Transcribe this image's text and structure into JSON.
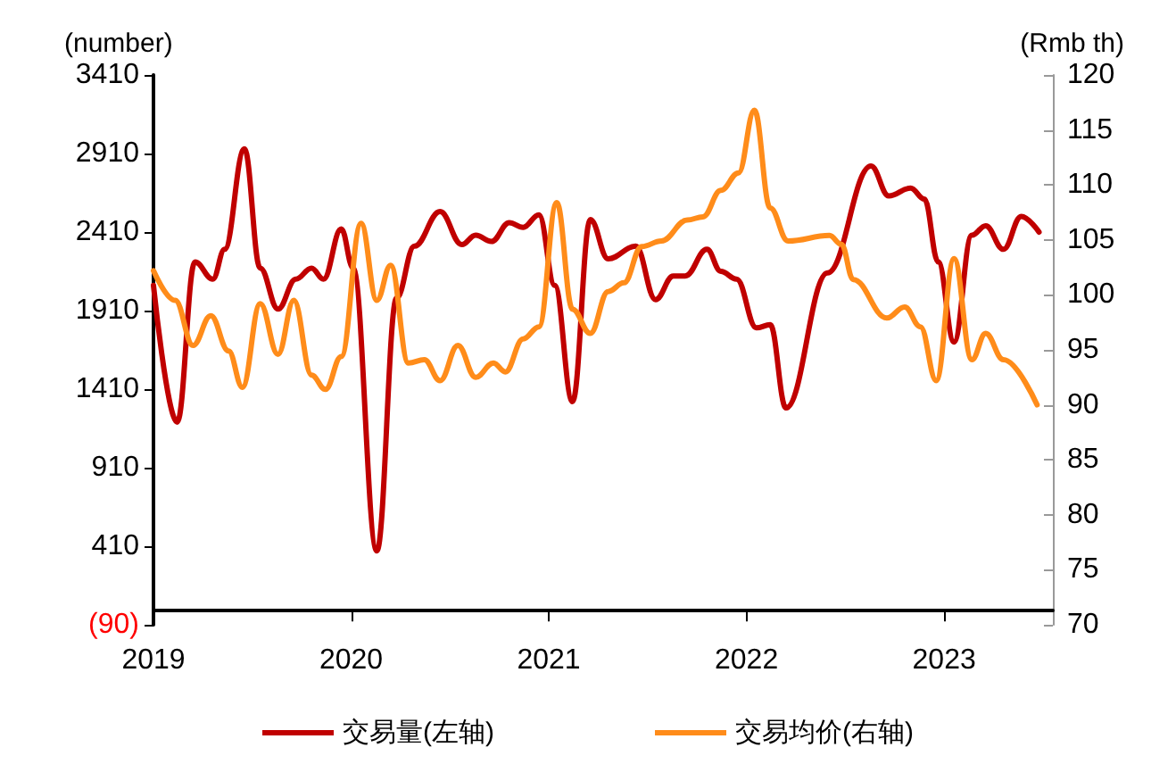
{
  "chart_data": {
    "type": "line",
    "ylabel": "(number)",
    "y2label": "(Rmb th)",
    "xlim": [
      2019,
      2023.55
    ],
    "xticks": [
      2019,
      2020,
      2021,
      2022,
      2023
    ],
    "ylim": [
      -90,
      3410
    ],
    "yticks": [
      {
        "value": -90,
        "label": "(90)"
      },
      410,
      910,
      1410,
      1910,
      2410,
      2910,
      3410
    ],
    "y2lim": [
      70,
      120
    ],
    "y2ticks": [
      70,
      75,
      80,
      85,
      90,
      95,
      100,
      105,
      110,
      115,
      120
    ],
    "grid": false,
    "legend": "bottom",
    "marker": "none",
    "line_style": "solid",
    "series": [
      {
        "name": "交易量(左轴)",
        "color": "#c00000",
        "x": [
          2019.0,
          2019.12,
          2019.21,
          2019.3,
          2019.36,
          2019.46,
          2019.54,
          2019.63,
          2019.72,
          2019.8,
          2019.86,
          2019.95,
          2020.01,
          2020.13,
          2020.23,
          2020.32,
          2020.45,
          2020.56,
          2020.63,
          2020.71,
          2020.8,
          2020.87,
          2020.95,
          2021.03,
          2021.12,
          2021.21,
          2021.3,
          2021.44,
          2021.54,
          2021.63,
          2021.69,
          2021.8,
          2021.87,
          2021.95,
          2022.05,
          2022.12,
          2022.2,
          2022.41,
          2022.63,
          2022.72,
          2022.83,
          2022.9,
          2022.97,
          2023.05,
          2023.14,
          2023.21,
          2023.3,
          2023.39,
          2023.48
        ],
        "values": [
          2070,
          1200,
          2220,
          2110,
          2300,
          2940,
          2180,
          1920,
          2110,
          2180,
          2110,
          2430,
          2180,
          380,
          1990,
          2320,
          2540,
          2330,
          2390,
          2350,
          2470,
          2440,
          2520,
          2070,
          1330,
          2490,
          2240,
          2320,
          1980,
          2130,
          2130,
          2300,
          2160,
          2110,
          1800,
          1820,
          1290,
          2150,
          2830,
          2640,
          2690,
          2620,
          2220,
          1710,
          2390,
          2450,
          2300,
          2510,
          2410
        ]
      },
      {
        "name": "交易均价(右轴)",
        "color": "#ff8c1a",
        "axis": "y2",
        "x": [
          2019.0,
          2019.11,
          2019.2,
          2019.29,
          2019.38,
          2019.45,
          2019.54,
          2019.63,
          2019.71,
          2019.8,
          2019.87,
          2019.95,
          2020.05,
          2020.13,
          2020.2,
          2020.29,
          2020.37,
          2020.45,
          2020.54,
          2020.63,
          2020.72,
          2020.78,
          2020.87,
          2020.95,
          2021.04,
          2021.12,
          2021.21,
          2021.3,
          2021.38,
          2021.47,
          2021.57,
          2021.7,
          2021.78,
          2021.87,
          2021.96,
          2022.04,
          2022.12,
          2022.21,
          2022.42,
          2022.48,
          2022.54,
          2022.71,
          2022.8,
          2022.88,
          2022.96,
          2023.05,
          2023.14,
          2023.21,
          2023.3,
          2023.47
        ],
        "values": [
          102.2,
          99.5,
          95.4,
          98.1,
          94.9,
          91.6,
          99.2,
          94.6,
          99.5,
          92.7,
          91.4,
          94.4,
          106.5,
          99.5,
          102.7,
          93.8,
          94.1,
          92.2,
          95.4,
          92.5,
          93.8,
          93.0,
          96.0,
          97.1,
          108.4,
          98.7,
          96.5,
          100.3,
          101.1,
          104.4,
          104.9,
          106.8,
          107.1,
          109.5,
          111.1,
          116.8,
          107.9,
          104.9,
          105.4,
          104.6,
          101.4,
          97.9,
          98.9,
          97.1,
          92.2,
          103.3,
          94.1,
          96.5,
          94.1,
          90.0
        ]
      }
    ]
  }
}
